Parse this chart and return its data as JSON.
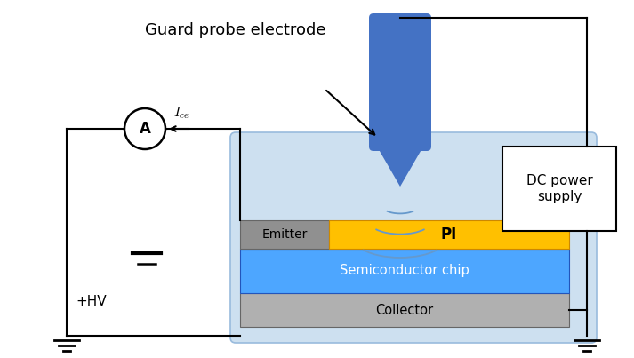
{
  "title": "Guard probe electrode",
  "bg_color": "#ffffff",
  "light_blue_bg": "#cde0f0",
  "probe_color": "#4472c4",
  "emitter_color": "#909090",
  "pi_color": "#ffc000",
  "chip_color": "#4da6ff",
  "collector_color": "#b0b0b0",
  "label_ice": "$I_{ce}$",
  "label_hv": "+HV",
  "label_emitter": "Emitter",
  "label_pi": "PI",
  "label_chip": "Semiconductor chip",
  "label_collector": "Collector",
  "label_dc": "DC power\nsupply",
  "label_A": "A",
  "wave_color": "#6699cc"
}
